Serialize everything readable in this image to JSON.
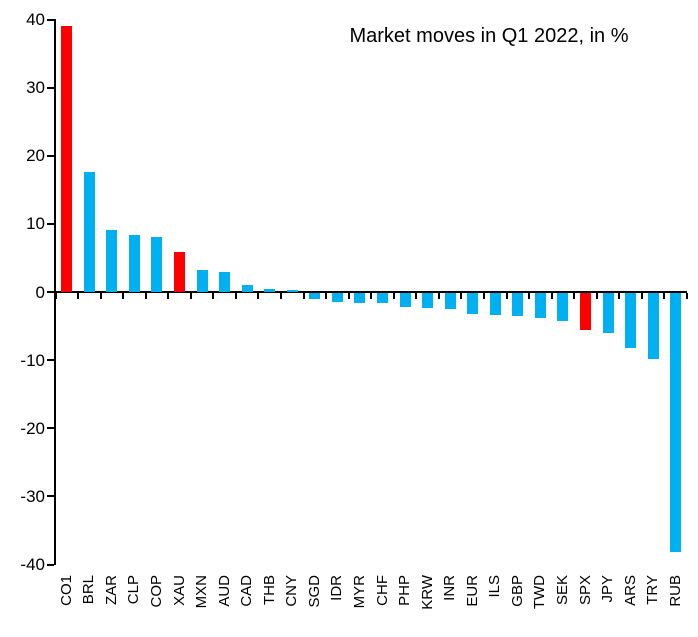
{
  "title": "Market moves in Q1 2022, in %",
  "colors": {
    "bar_default": "#00B0F0",
    "bar_highlight": "#FF0000",
    "axis": "#000000",
    "text": "#000000",
    "background": "#FFFFFF"
  },
  "chart_data": {
    "type": "bar",
    "title": "Market moves in Q1 2022, in %",
    "xlabel": "",
    "ylabel": "",
    "ylim": [
      -40,
      40
    ],
    "yticks": [
      40,
      30,
      20,
      10,
      0,
      -10,
      -20,
      -30,
      -40
    ],
    "grid": false,
    "legend": false,
    "bar_orientation": "vertical",
    "sort": "descending",
    "categories": [
      "CO1",
      "BRL",
      "ZAR",
      "CLP",
      "COP",
      "XAU",
      "MXN",
      "AUD",
      "CAD",
      "THB",
      "CNY",
      "SGD",
      "IDR",
      "MYR",
      "CHF",
      "PHP",
      "KRW",
      "INR",
      "EUR",
      "ILS",
      "GBP",
      "TWD",
      "SEK",
      "SPX",
      "JPY",
      "ARS",
      "TRY",
      "RUB"
    ],
    "values": [
      39.0,
      17.6,
      9.1,
      8.4,
      8.1,
      5.9,
      3.3,
      3.0,
      1.0,
      0.5,
      0.3,
      -0.9,
      -1.3,
      -1.4,
      -1.5,
      -2.0,
      -2.2,
      -2.3,
      -3.1,
      -3.3,
      -3.4,
      -3.6,
      -4.1,
      -5.4,
      -5.9,
      -8.0,
      -9.7,
      -38.0
    ],
    "highlighted_categories": [
      "CO1",
      "XAU",
      "SPX"
    ],
    "highlight_color": "#FF0000",
    "default_color": "#00B0F0"
  }
}
